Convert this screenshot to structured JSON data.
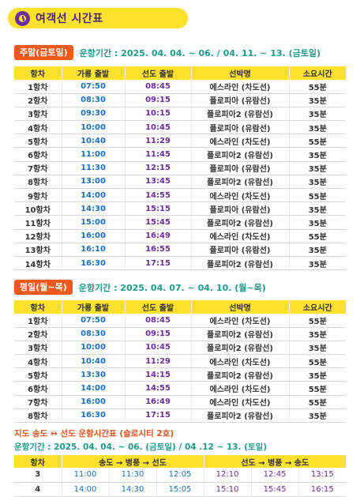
{
  "title": "여객선 시간표",
  "weekend": {
    "badge": "주말(금토일)",
    "period": "운항기간 : 2025. 04. 04. ~ 06. / 04. 11. ~ 13. (금토일)",
    "headers": [
      "항차",
      "가룡 출발",
      "선도 출발",
      "선박명",
      "소요시간"
    ],
    "rows": [
      [
        "1항차",
        "07:50",
        "08:45",
        "에스라인 (차도선)",
        "55분"
      ],
      [
        "2항차",
        "08:30",
        "09:15",
        "플로피아 (유람선)",
        "35분"
      ],
      [
        "3항차",
        "09:30",
        "10:15",
        "플로피아2 (유람선)",
        "35분"
      ],
      [
        "4항차",
        "10:00",
        "10:45",
        "플로피아 (유람선)",
        "35분"
      ],
      [
        "5항차",
        "10:40",
        "11:29",
        "에스라인 (차도선)",
        "55분"
      ],
      [
        "6항차",
        "11:00",
        "11:45",
        "플로피아2 (유람선)",
        "35분"
      ],
      [
        "7항차",
        "11:30",
        "12:15",
        "플로피아 (유람선)",
        "35분"
      ],
      [
        "8항차",
        "13:00",
        "13:45",
        "플로피아2 (유람선)",
        "35분"
      ],
      [
        "9항차",
        "14:00",
        "14:55",
        "에스라인 (차도선)",
        "55분"
      ],
      [
        "10항차",
        "14:30",
        "15:15",
        "플로피아 (유람선)",
        "35분"
      ],
      [
        "11항차",
        "15:00",
        "15:45",
        "플로피아2 (유람선)",
        "35분"
      ],
      [
        "12항차",
        "16:00",
        "16:49",
        "에스라인 (차도선)",
        "55분"
      ],
      [
        "13항차",
        "16:10",
        "16:55",
        "플로피아 (유람선)",
        "35분"
      ],
      [
        "14항차",
        "16:30",
        "17:15",
        "플로피아2 (유람선)",
        "35분"
      ]
    ]
  },
  "weekday": {
    "badge": "평일(월~목)",
    "period": "운항기간 : 2025. 04. 07. ~ 04. 10. (월~목)",
    "headers": [
      "항차",
      "가룡 출발",
      "선도 출발",
      "선박명",
      "소요시간"
    ],
    "rows": [
      [
        "1항차",
        "07:50",
        "08:45",
        "에스라인 (차도선)",
        "55분"
      ],
      [
        "2항차",
        "08:30",
        "09:15",
        "플로피아2 (유람선)",
        "35분"
      ],
      [
        "3항차",
        "10:00",
        "10:45",
        "플로피아2 (유람선)",
        "35분"
      ],
      [
        "4항차",
        "10:40",
        "11:29",
        "에스라인 (차도선)",
        "55분"
      ],
      [
        "5항차",
        "13:30",
        "14:15",
        "플로피아2 (유람선)",
        "35분"
      ],
      [
        "6항차",
        "14:00",
        "14:55",
        "에스라인 (차도선)",
        "55분"
      ],
      [
        "7항차",
        "16:00",
        "16:49",
        "에스라인 (차도선)",
        "55분"
      ],
      [
        "8항차",
        "16:30",
        "17:15",
        "플로피아2 (유람선)",
        "35분"
      ]
    ]
  },
  "bus": {
    "title": "지도 송도 ↔ 선도 운항시간표 (슬로시티 2호)",
    "period": "운항기간 : 2025. 04. 04. ~ 06. (금토일) / 04 .12 ~ 13. (토일)",
    "headers": [
      "항차",
      "송도 → 병풍 → 선도",
      "선도 → 병풍 → 송도"
    ],
    "rows": [
      [
        "3",
        "11:00",
        "11:30",
        "12:05",
        "12:10",
        "12:45",
        "13:15"
      ],
      [
        "4",
        "14:00",
        "14:30",
        "15:05",
        "15:10",
        "15:45",
        "16:15"
      ]
    ]
  },
  "colors": {
    "accent_yellow": "#fde12c",
    "badge_orange": "#f0591c",
    "period_teal": "#1f9a8a",
    "depart_blue": "#1d6fb8",
    "return_purple": "#6a2f9a"
  }
}
